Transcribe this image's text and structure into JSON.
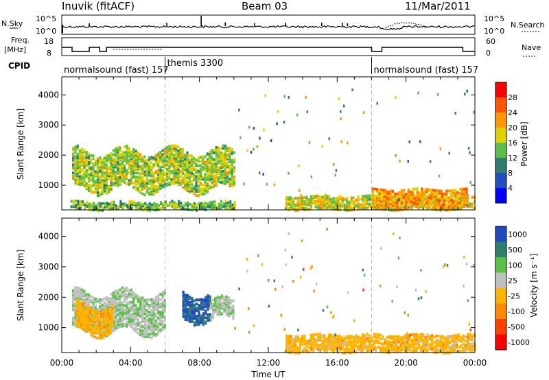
{
  "header": {
    "radar_title": "Inuvik (fitACF)",
    "beam": "Beam 03",
    "date": "11/Mar/2011"
  },
  "top_panels": {
    "nsky_label": "N.Sky",
    "nsky_ticks": [
      "10^5",
      "10^0"
    ],
    "nsearch_label": "N.Search",
    "nsearch_ticks": [
      "10^5",
      "10^0"
    ],
    "freq_label": "Freq.",
    "freq_unit": "[MHz]",
    "freq_ticks": [
      "18",
      "8"
    ],
    "nave_label": "Nave",
    "nave_ticks": [
      "60",
      "0"
    ],
    "cpid_label": "CPID",
    "cpid_segments": [
      {
        "label": "normalsound (fast) 157",
        "start": 0,
        "end": 6
      },
      {
        "label": "themis 3300",
        "start": 6,
        "end": 18
      },
      {
        "label": "normalsound (fast) 157",
        "start": 18,
        "end": 24
      }
    ]
  },
  "axes": {
    "xlabel": "Time UT",
    "x_ticks": [
      "00:00",
      "04:00",
      "08:00",
      "12:00",
      "16:00",
      "20:00",
      "00:00"
    ],
    "ylabel": "Slant Range [km]",
    "y_ticks": [
      "1000",
      "2000",
      "3000",
      "4000"
    ]
  },
  "colorbars": {
    "power": {
      "label": "Power [dB]",
      "ticks": [
        "4",
        "8",
        "12",
        "16",
        "20",
        "24",
        "28"
      ],
      "colors": [
        "#0000ff",
        "#1f4fc0",
        "#2e7f6e",
        "#59c246",
        "#e0d000",
        "#ff9800",
        "#ff5500",
        "#ff0000"
      ]
    },
    "velocity": {
      "label": "Velocity [m s⁻¹]",
      "ticks": [
        "1000",
        "500",
        "100",
        "25",
        "-25",
        "-100",
        "-500",
        "-1000"
      ],
      "colors": [
        "#1e4bbf",
        "#2e7f6e",
        "#59c246",
        "#bfbfbf",
        "#ffb300",
        "#ff8a00",
        "#ff4000",
        "#ff0000"
      ]
    }
  },
  "chart_data": [
    {
      "type": "heatmap",
      "title": "Power",
      "xlabel": "Time UT",
      "ylabel": "Slant Range [km]",
      "xlim": [
        0,
        24
      ],
      "ylim": [
        180,
        4600
      ],
      "colorbar_label": "Power [dB]",
      "colorbar_range": [
        0,
        32
      ],
      "regions": [
        {
          "t_start": 0.6,
          "t_end": 10.0,
          "r_low": 900,
          "r_high": 2200,
          "value": 16
        },
        {
          "t_start": 0.5,
          "t_end": 10.0,
          "r_low": 250,
          "r_high": 500,
          "value": 14
        },
        {
          "t_start": 13.0,
          "t_end": 24.0,
          "r_low": 250,
          "r_high": 700,
          "value": 18
        },
        {
          "t_start": 18.0,
          "t_end": 23.5,
          "r_low": 300,
          "r_high": 900,
          "value": 22
        }
      ]
    },
    {
      "type": "heatmap",
      "title": "Velocity",
      "xlabel": "Time UT",
      "ylabel": "Slant Range [km]",
      "xlim": [
        0,
        24
      ],
      "ylim": [
        180,
        4600
      ],
      "colorbar_label": "Velocity [m s⁻¹]",
      "colorbar_range": [
        -1000,
        1000
      ],
      "regions": [
        {
          "t_start": 0.6,
          "t_end": 6.0,
          "r_low": 900,
          "r_high": 2200,
          "value": 200
        },
        {
          "t_start": 0.8,
          "t_end": 3.0,
          "r_low": 900,
          "r_high": 1800,
          "value": -150
        },
        {
          "t_start": 7.0,
          "t_end": 8.6,
          "r_low": 1300,
          "r_high": 2200,
          "value": 800
        },
        {
          "t_start": 8.6,
          "t_end": 10.0,
          "r_low": 1300,
          "r_high": 1900,
          "value": 200
        },
        {
          "t_start": 13.0,
          "t_end": 24.0,
          "r_low": 250,
          "r_high": 800,
          "value": -120
        }
      ]
    }
  ]
}
